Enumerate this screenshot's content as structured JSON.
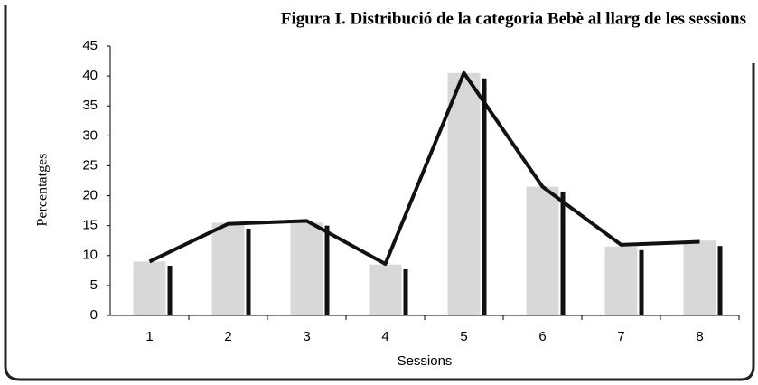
{
  "chart_data": {
    "type": "bar",
    "title": "Figura I. Distribució de la categoria Bebè al llarg de les sessions",
    "x_label": "Sessions",
    "y_label": "Percentatges",
    "categories": [
      "1",
      "2",
      "3",
      "4",
      "5",
      "6",
      "7",
      "8"
    ],
    "series": [
      {
        "color": "#d8d8d8",
        "values": [
          9,
          15.5,
          15.5,
          8.5,
          40.5,
          21.5,
          11.5,
          12.5
        ]
      },
      {
        "color": "#111111",
        "values": [
          8.3,
          14.5,
          15,
          7.7,
          39.6,
          20.7,
          10.9,
          11.6
        ]
      },
      {
        "color": "#111111",
        "type": "line",
        "values": [
          9,
          15.3,
          15.8,
          8.6,
          40.5,
          21.5,
          11.8,
          12.3
        ]
      }
    ],
    "ylim": [
      0,
      45
    ],
    "yticks": [
      0,
      5,
      10,
      15,
      20,
      25,
      30,
      35,
      40,
      45
    ]
  }
}
